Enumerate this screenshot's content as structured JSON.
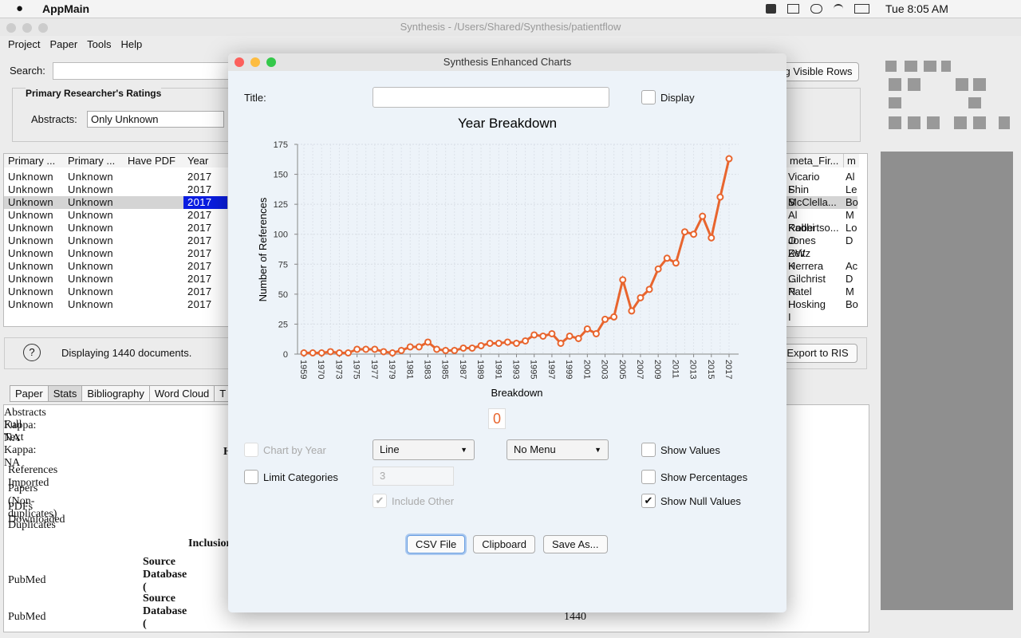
{
  "menubar": {
    "app": "AppMain",
    "clock": "Tue 8:05 AM"
  },
  "window": {
    "title": "Synthesis - /Users/Shared/Synthesis/patientflow",
    "menus": [
      "Project",
      "Paper",
      "Tools",
      "Help"
    ]
  },
  "search": {
    "label": "Search:"
  },
  "ratings": {
    "title": "Primary Researcher's  Ratings",
    "abstracts_label": "Abstracts:",
    "abstracts_value": "Only Unknown"
  },
  "visible_rows_button": "g Visible Rows",
  "table": {
    "columns": [
      "Primary ...",
      "Primary ...",
      "Have PDF",
      "Year"
    ],
    "rows": [
      [
        "Unknown",
        "Unknown",
        "2017"
      ],
      [
        "Unknown",
        "Unknown",
        "2017"
      ],
      [
        "Unknown",
        "Unknown",
        "2017"
      ],
      [
        "Unknown",
        "Unknown",
        "2017"
      ],
      [
        "Unknown",
        "Unknown",
        "2017"
      ],
      [
        "Unknown",
        "Unknown",
        "2017"
      ],
      [
        "Unknown",
        "Unknown",
        "2017"
      ],
      [
        "Unknown",
        "Unknown",
        "2017"
      ],
      [
        "Unknown",
        "Unknown",
        "2017"
      ],
      [
        "Unknown",
        "Unknown",
        "2017"
      ],
      [
        "Unknown",
        "Unknown",
        "2017"
      ]
    ],
    "right_columns": [
      "meta_Fir...",
      "m"
    ],
    "right_rows": [
      [
        "Vicario F",
        "Al"
      ],
      [
        "Shin S",
        "Le"
      ],
      [
        "McClella...",
        "Bo"
      ],
      [
        "Al Kadhi O",
        "M"
      ],
      [
        "Robertso...",
        "Lo"
      ],
      [
        "Jones RW",
        "D"
      ],
      [
        "Zeitz K"
      ],
      [
        "Herrera ...",
        "Ac"
      ],
      [
        "Gilchrist N",
        "D"
      ],
      [
        "Patel H",
        "M"
      ],
      [
        "Hosking I",
        "Bo"
      ]
    ]
  },
  "status": {
    "help": "?",
    "text": "Displaying 1440 documents.",
    "export": "Export to RIS"
  },
  "tabs": [
    "Paper",
    "Stats",
    "Bibliography",
    "Word Cloud",
    "T"
  ],
  "stats": {
    "lines": [
      "Abstracts Kappa: NA",
      "Full Text Kappa: NA"
    ],
    "heading": "H",
    "rows": [
      "References Imported",
      "Papers (Non-duplicates)",
      "PDFs Downloaded",
      "Duplicates"
    ],
    "inclusion": "Inclusion",
    "source1": "Source Database (",
    "pubmed1": "PubMed",
    "source2": "Source Database (",
    "pubmed2": "PubMed",
    "total": "1440"
  },
  "dialog": {
    "title": "Synthesis Enhanced Charts",
    "title_label": "Title:",
    "display": {
      "label": "Display",
      "checked": false
    },
    "badge": "0",
    "chart_by_year": {
      "label": "Chart by Year",
      "checked": false
    },
    "chart_type": "Line",
    "menu": "No Menu",
    "show_values": {
      "label": "Show Values",
      "checked": false
    },
    "limit_categories": {
      "label": "Limit Categories",
      "checked": false
    },
    "limit_count": "3",
    "show_percentages": {
      "label": "Show Percentages",
      "checked": false
    },
    "include_other": {
      "label": "Include Other",
      "checked": true
    },
    "show_null_values": {
      "label": "Show Null Values",
      "checked": true
    },
    "buttons": [
      "CSV File",
      "Clipboard",
      "Save As..."
    ]
  },
  "chart_data": {
    "type": "line",
    "title": "Year Breakdown",
    "x_label": "Breakdown",
    "y_label": "Number of References",
    "color": "#e8652e",
    "grid": true,
    "categories": [
      "1959",
      null,
      "1970",
      null,
      "1973",
      null,
      "1975",
      null,
      "1977",
      null,
      "1979",
      null,
      "1981",
      null,
      "1983",
      null,
      "1985",
      null,
      "1987",
      null,
      "1989",
      null,
      "1991",
      null,
      "1993",
      null,
      "1995",
      null,
      "1997",
      null,
      "1999",
      null,
      "2001",
      null,
      "2003",
      null,
      "2005",
      null,
      "2007",
      null,
      "2009",
      null,
      "2011",
      null,
      "2013",
      null,
      "2015",
      null,
      "2017"
    ],
    "values": [
      1,
      1,
      1,
      2,
      1,
      1,
      4,
      4,
      4,
      2,
      1,
      3,
      6,
      6,
      10,
      4,
      3,
      3,
      5,
      5,
      7,
      9,
      9,
      10,
      9,
      11,
      16,
      15,
      17,
      9,
      15,
      13,
      21,
      17,
      29,
      31,
      62,
      36,
      47,
      54,
      71,
      80,
      76,
      102,
      100,
      115,
      97,
      131,
      163
    ],
    "ylim": [
      0,
      175
    ],
    "yticks": [
      0,
      25,
      50,
      75,
      100,
      125,
      150,
      175
    ]
  }
}
